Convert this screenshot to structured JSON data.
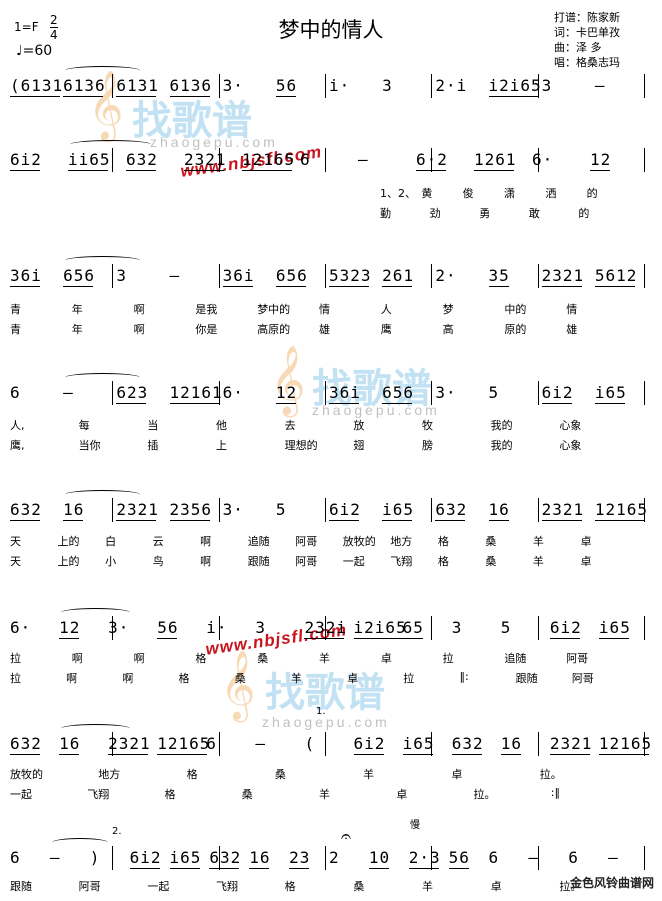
{
  "header": {
    "title": "梦中的情人",
    "key": "1=F",
    "time_top": "2",
    "time_bottom": "4",
    "tempo": "=60",
    "credits": [
      "打谱：陈家新",
      "词：卡巴单孜",
      "曲：泽  多",
      "唱：格桑志玛"
    ]
  },
  "rows": [
    {
      "notes": [
        "(6131",
        "6136",
        "6131",
        "6136",
        "3·",
        "56",
        "i·",
        "3",
        "2·i",
        "i2i65",
        "3",
        "–"
      ],
      "lyrics1": [],
      "lyrics2": []
    },
    {
      "notes": [
        "6i2",
        "ii65",
        "632",
        "2321",
        "12165",
        "6",
        "–",
        "6·2",
        "1261",
        "6·",
        "12"
      ],
      "lyrics1": [
        "1、2、",
        "黄",
        "俊",
        "潇",
        "洒",
        "的"
      ],
      "lyrics2": [
        "勤",
        "劲",
        "勇",
        "敢",
        "的"
      ]
    },
    {
      "notes": [
        "36i",
        "656",
        "3",
        "–",
        "36i",
        "656",
        "5323",
        "261",
        "2·",
        "35",
        "2321",
        "5612"
      ],
      "lyrics1": [
        "青",
        "年",
        "啊",
        "是我",
        "梦中的",
        "情",
        "人",
        "梦",
        "中的",
        "情"
      ],
      "lyrics2": [
        "青",
        "年",
        "啊",
        "你是",
        "高原的",
        "雄",
        "鹰",
        "高",
        "原的",
        "雄"
      ]
    },
    {
      "notes": [
        "6",
        "–",
        "623",
        "12161",
        "6·",
        "12",
        "36i",
        "656",
        "3·",
        "5",
        "6i2",
        "i65"
      ],
      "lyrics1": [
        "人,",
        "每",
        "当",
        "他",
        "去",
        "放",
        "牧",
        "我的",
        "心象"
      ],
      "lyrics2": [
        "鹰,",
        "当你",
        "插",
        "上",
        "理想的",
        "翅",
        "膀",
        "我的",
        "心象"
      ]
    },
    {
      "notes": [
        "632",
        "16",
        "2321",
        "2356",
        "3·",
        "5",
        "6i2",
        "i65",
        "632",
        "16",
        "2321",
        "12165"
      ],
      "lyrics1": [
        "天",
        "上的",
        "白",
        "云",
        "啊",
        "追随",
        "阿哥",
        "放牧的",
        "地方",
        "格",
        "桑",
        "羊",
        "卓"
      ],
      "lyrics2": [
        "天",
        "上的",
        "小",
        "鸟",
        "啊",
        "跟随",
        "阿哥",
        "一起",
        "飞翔",
        "格",
        "桑",
        "羊",
        "卓"
      ]
    },
    {
      "notes": [
        "6·",
        "12",
        "3·",
        "56",
        "i·",
        "3",
        "232i",
        "i2i65",
        "65",
        "3",
        "5",
        "6i2",
        "i65"
      ],
      "lyrics1": [
        "拉",
        "啊",
        "啊",
        "格",
        "桑",
        "羊",
        "卓",
        "拉",
        "追随",
        "阿哥"
      ],
      "lyrics2": [
        "拉",
        "啊",
        "啊",
        "格",
        "桑",
        "羊",
        "卓",
        "拉",
        "‖:",
        "跟随",
        "阿哥"
      ]
    },
    {
      "notes": [
        "632",
        "16",
        "2321",
        "12165",
        "6",
        "–",
        "(",
        "6i2",
        "i65",
        "632",
        "16",
        "2321",
        "12165"
      ],
      "lyrics1": [
        "放牧的",
        "地方",
        "格",
        "桑",
        "羊",
        "卓",
        "拉。"
      ],
      "lyrics2": [
        "一起",
        "飞翔",
        "格",
        "桑",
        "羊",
        "卓",
        "拉。",
        ":‖"
      ]
    },
    {
      "notes": [
        "6",
        "–",
        ")",
        "6i2",
        "i65",
        "632",
        "16",
        "23",
        "2",
        "10",
        "2·3",
        "56",
        "6",
        "–",
        "6",
        "–"
      ],
      "lyrics1": [
        "跟随",
        "阿哥",
        "一起",
        "飞翔",
        "格",
        "桑",
        "羊",
        "卓",
        "拉。"
      ],
      "lyrics2": []
    }
  ],
  "marks": {
    "volta1": "1.",
    "volta2": "2.",
    "slow": "慢",
    "watermark_big": "找歌谱",
    "watermark_sub": "zhaogepu.com",
    "watermark_url": "www.nbjsfl.com",
    "footer": "金色风铃曲谱网"
  }
}
